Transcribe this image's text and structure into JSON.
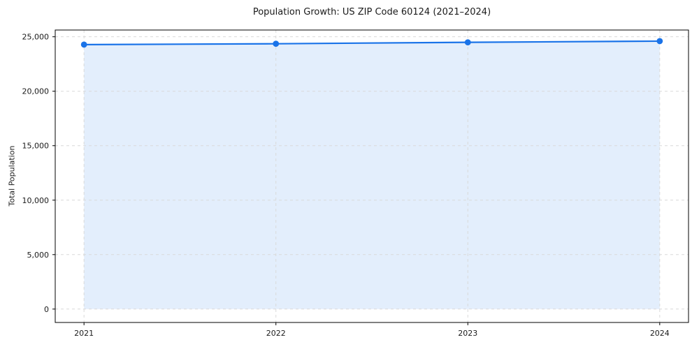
{
  "chart_data": {
    "type": "area",
    "title": "Population Growth: US ZIP Code 60124 (2021–2024)",
    "xlabel": "",
    "ylabel": "Total Population",
    "x": [
      2021,
      2022,
      2023,
      2024
    ],
    "series": [
      {
        "name": "Total Population",
        "values": [
          24280,
          24360,
          24490,
          24600
        ]
      }
    ],
    "fill_to_zero": true,
    "xlim": [
      2020.85,
      2024.15
    ],
    "ylim": [
      -1230,
      25620
    ],
    "xticks": {
      "values": [
        2021,
        2022,
        2023,
        2024
      ],
      "labels": [
        "2021",
        "2022",
        "2023",
        "2024"
      ]
    },
    "yticks": {
      "values": [
        0,
        5000,
        10000,
        15000,
        20000,
        25000
      ],
      "labels": [
        "0",
        "5,000",
        "10,000",
        "15,000",
        "20,000",
        "25,000"
      ]
    },
    "grid": true,
    "grid_style": "dashed",
    "legend": "none",
    "colors": {
      "line": "#1A73E8",
      "marker": "#1A73E8",
      "fill": "#1A73E8",
      "fill_alpha": 0.12,
      "grid": "#D9D9D9",
      "spine": "#000000",
      "text": "#1A1A1A",
      "background": "#FFFFFF"
    }
  }
}
